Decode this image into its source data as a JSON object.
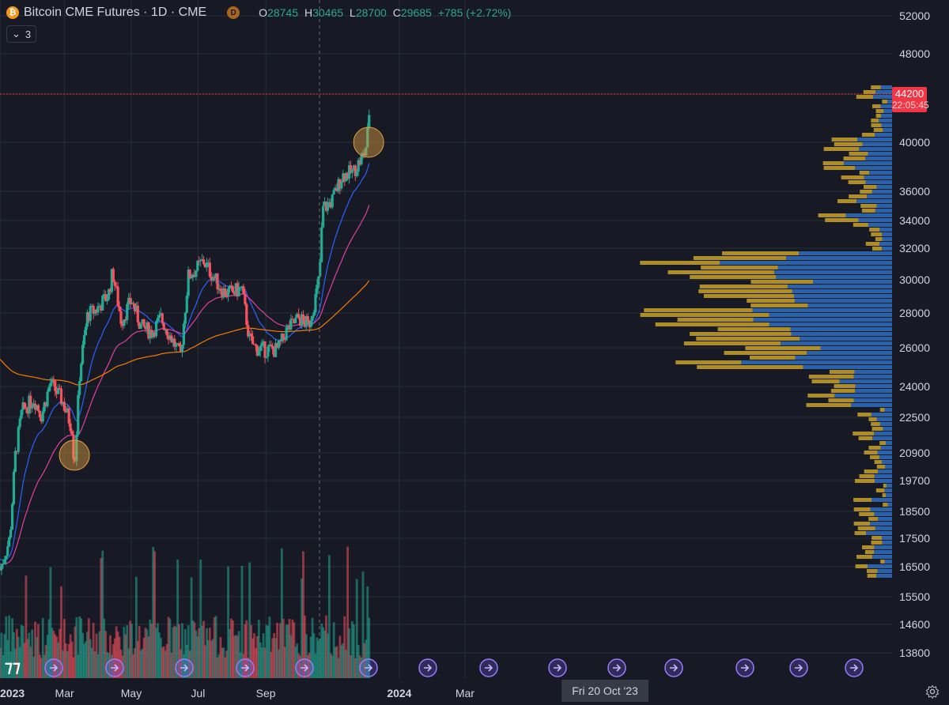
{
  "header": {
    "symbol_title": "Bitcoin CME Futures · 1D · CME",
    "coin_icon": "bitcoin-icon",
    "badge_letter": "D",
    "ohlc": {
      "o_label": "O",
      "o_value": "28745",
      "h_label": "H",
      "h_value": "30465",
      "l_label": "L",
      "l_value": "28700",
      "c_label": "C",
      "c_value": "29685",
      "change": "+785 (+2.72%)"
    },
    "indicators_count": "3"
  },
  "price_tag": {
    "price": "44200",
    "countdown": "22:05:45",
    "color": "#f23645"
  },
  "crosshair": {
    "date_label": "Fri 20 Oct '23"
  },
  "colors": {
    "background": "#171a25",
    "grid": "#2a2e39",
    "up": "#22ab94",
    "down": "#f7525f",
    "ema_short": "#2962ff",
    "ema_mid": "#e040a0",
    "ema_long": "#f57c00",
    "vp_up": "#2f6fbf",
    "vp_down": "#c9a227"
  },
  "chart_data": {
    "type": "candlestick",
    "y_axis": {
      "ticks": [
        52000,
        48000,
        44200,
        40000,
        36000,
        34000,
        32000,
        30000,
        28000,
        26000,
        24000,
        22500,
        20900,
        19700,
        18500,
        17500,
        16500,
        15500,
        14600,
        13800
      ],
      "tick_labels": [
        "52000",
        "48000",
        "",
        "40000",
        "36000",
        "34000",
        "32000",
        "30000",
        "28000",
        "26000",
        "24000",
        "22500",
        "20900",
        "19700",
        "18500",
        "17500",
        "16500",
        "15500",
        "14600",
        "13800"
      ],
      "scale": "log"
    },
    "x_axis": {
      "tick_labels": [
        "2023",
        "Mar",
        "May",
        "Jul",
        "Sep",
        "2024",
        "Mar"
      ]
    },
    "close_path": [
      [
        "2023-01-01",
        16400
      ],
      [
        "2023-01-10",
        17500
      ],
      [
        "2023-01-15",
        20800
      ],
      [
        "2023-01-21",
        22800
      ],
      [
        "2023-02-01",
        23400
      ],
      [
        "2023-02-08",
        22600
      ],
      [
        "2023-02-16",
        24200
      ],
      [
        "2023-02-27",
        23300
      ],
      [
        "2023-03-08",
        22000
      ],
      [
        "2023-03-10",
        20200
      ],
      [
        "2023-03-15",
        24800
      ],
      [
        "2023-03-22",
        27900
      ],
      [
        "2023-03-30",
        28200
      ],
      [
        "2023-04-10",
        29100
      ],
      [
        "2023-04-14",
        30500
      ],
      [
        "2023-04-22",
        27500
      ],
      [
        "2023-05-01",
        28800
      ],
      [
        "2023-05-10",
        27200
      ],
      [
        "2023-05-20",
        26900
      ],
      [
        "2023-05-28",
        27700
      ],
      [
        "2023-06-08",
        26400
      ],
      [
        "2023-06-15",
        25500
      ],
      [
        "2023-06-22",
        30200
      ],
      [
        "2023-06-30",
        30700
      ],
      [
        "2023-07-06",
        31200
      ],
      [
        "2023-07-14",
        30300
      ],
      [
        "2023-07-24",
        29300
      ],
      [
        "2023-08-01",
        29200
      ],
      [
        "2023-08-10",
        29500
      ],
      [
        "2023-08-17",
        26500
      ],
      [
        "2023-08-22",
        26000
      ],
      [
        "2023-09-01",
        25900
      ],
      [
        "2023-09-12",
        25900
      ],
      [
        "2023-09-20",
        27000
      ],
      [
        "2023-10-01",
        27700
      ],
      [
        "2023-10-10",
        27300
      ],
      [
        "2023-10-16",
        28800
      ],
      [
        "2023-10-20",
        30200
      ],
      [
        "2023-10-23",
        34800
      ],
      [
        "2023-11-01",
        35400
      ],
      [
        "2023-11-10",
        37300
      ],
      [
        "2023-11-20",
        37600
      ],
      [
        "2023-12-01",
        39200
      ],
      [
        "2023-12-04",
        41600
      ],
      [
        "2023-12-05",
        44200
      ]
    ],
    "marked_points": [
      {
        "date": "2023-03-10",
        "price": 20800
      },
      {
        "date": "2023-12-04",
        "price": 40000
      }
    ],
    "last_price": 44200
  }
}
